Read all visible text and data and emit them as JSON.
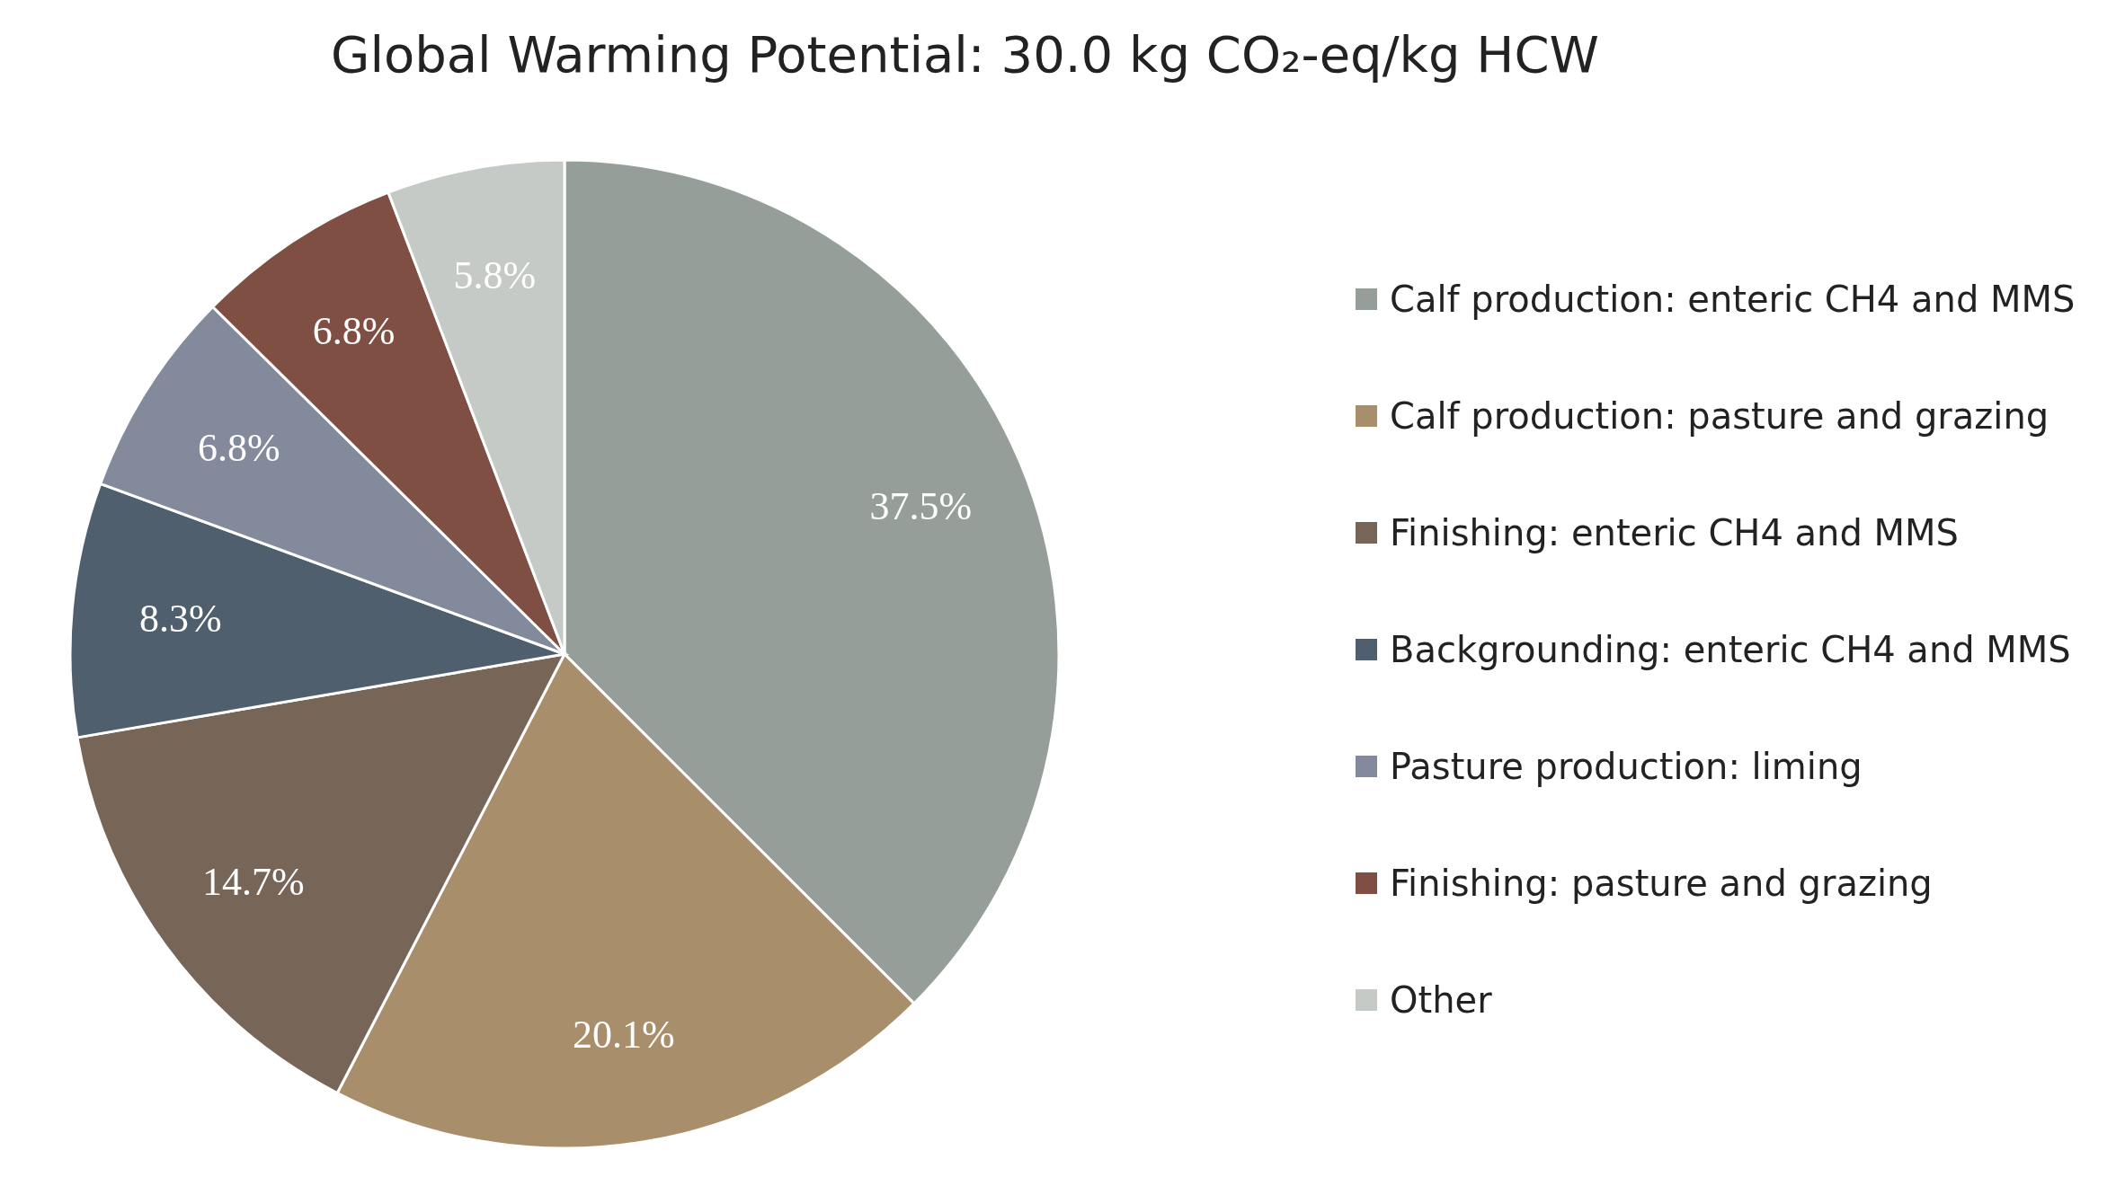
{
  "chart_data": {
    "type": "pie",
    "title": "Global Warming Potential: 30.0 kg CO₂-eq/kg HCW",
    "categories": [
      "Calf production: enteric CH4 and MMS",
      "Calf production: pasture and grazing",
      "Finishing: enteric CH4 and MMS",
      "Backgrounding: enteric CH4 and MMS",
      "Pasture production: liming",
      "Finishing: pasture and grazing",
      "Other"
    ],
    "values": [
      37.5,
      20.1,
      14.7,
      8.3,
      6.8,
      6.8,
      5.8
    ],
    "value_labels": [
      "37.5%",
      "20.1%",
      "14.7%",
      "8.3%",
      "6.8%",
      "6.8%",
      "5.8%"
    ],
    "colors": [
      "#959e98",
      "#a98e6b",
      "#776558",
      "#4f5f6e",
      "#838a9b",
      "#7f4f44",
      "#c5cac6"
    ],
    "legend": "right"
  }
}
